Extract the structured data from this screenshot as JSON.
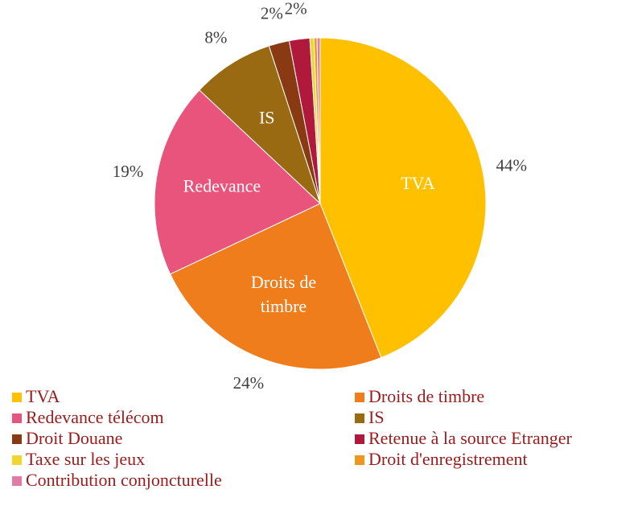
{
  "chart_data": {
    "type": "pie",
    "categories": [
      "TVA",
      "Droits de timbre",
      "Redevance télécom",
      "IS",
      "Droit Douane",
      "Retenue à la source Etranger",
      "Taxe sur les jeux",
      "Droit d'enregistrement",
      "Contribution conjoncturelle"
    ],
    "values": [
      44,
      24,
      19,
      8,
      2,
      2,
      0.4,
      0.3,
      0.3
    ],
    "value_labels": [
      "44%",
      "24%",
      "19%",
      "8%",
      "2%",
      "2%",
      null,
      null,
      null
    ],
    "slice_labels": [
      [
        "TVA"
      ],
      [
        "Droits de",
        "timbre"
      ],
      [
        "Redevance"
      ],
      [
        "IS"
      ],
      null,
      null,
      null,
      null,
      null
    ],
    "colors": [
      "#ffc000",
      "#f07d1c",
      "#e8547c",
      "#9a6a12",
      "#8a3a12",
      "#b0183c",
      "#f2d630",
      "#f0961e",
      "#e27aa6"
    ],
    "legend": "bottom"
  }
}
